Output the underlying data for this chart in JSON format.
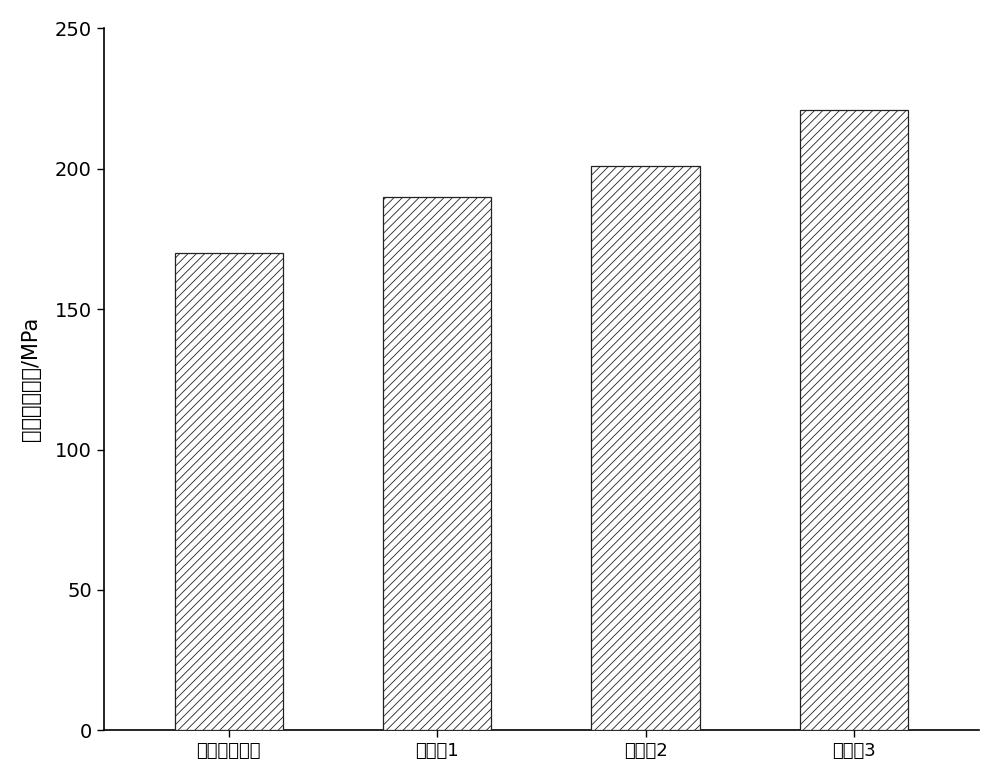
{
  "categories": [
    "单独真空净化",
    "实施例1",
    "实施例2",
    "实施例3"
  ],
  "values": [
    170,
    190,
    201,
    221
  ],
  "ylim": [
    0,
    250
  ],
  "yticks": [
    0,
    50,
    100,
    150,
    200,
    250
  ],
  "ylabel": "最大抗拉强度/MPa",
  "bar_color": "#ffffff",
  "bar_edge_color": "#222222",
  "hatch": "////",
  "bar_width": 0.52,
  "background_color": "#ffffff",
  "ylabel_fontsize": 15,
  "tick_fontsize": 14,
  "xlabel_fontsize": 13,
  "hatch_linewidth": 0.6
}
